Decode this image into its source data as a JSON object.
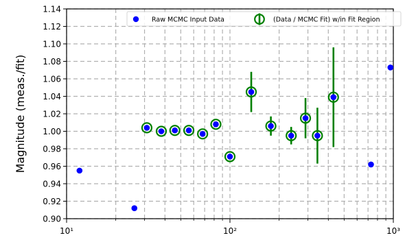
{
  "chart_data": {
    "type": "scatter",
    "title": "",
    "xlabel": "",
    "ylabel": "Magnitude (meas./fit)",
    "xscale": "log",
    "xlim": [
      10,
      1000
    ],
    "ylim": [
      0.9,
      1.14
    ],
    "grid": true,
    "legend_position": "top-right",
    "x_tick_labels": [
      "10¹",
      "10²",
      "10³"
    ],
    "x_major_ticks": [
      10,
      100,
      1000
    ],
    "y_ticks": [
      0.9,
      0.92,
      0.94,
      0.96,
      0.98,
      1.0,
      1.02,
      1.04,
      1.06,
      1.08,
      1.1,
      1.12,
      1.14
    ],
    "y_tick_labels": [
      "0.90",
      "0.92",
      "0.94",
      "0.96",
      "0.98",
      "1.00",
      "1.02",
      "1.04",
      "1.06",
      "1.08",
      "1.10",
      "1.12",
      "1.14"
    ],
    "series": [
      {
        "name": "Raw MCMC Input Data",
        "color": "#0000ff",
        "marker": "filled-circle",
        "x": [
          12,
          26,
          31,
          38,
          46,
          56,
          68,
          82,
          100,
          135,
          178,
          237,
          290,
          343,
          430,
          730,
          960
        ],
        "y": [
          0.955,
          0.912,
          1.004,
          1.0,
          1.001,
          1.001,
          0.997,
          1.008,
          0.971,
          1.045,
          1.006,
          0.995,
          1.015,
          0.995,
          1.039,
          0.962,
          1.073
        ]
      },
      {
        "name": "(Data / MCMC Fit) w/in Fit Region",
        "color": "#008000",
        "marker": "open-circle-errorbar",
        "x": [
          31,
          38,
          46,
          56,
          68,
          82,
          100,
          135,
          178,
          237,
          290,
          343,
          430
        ],
        "y": [
          1.004,
          1.0,
          1.001,
          1.001,
          0.997,
          1.008,
          0.971,
          1.045,
          1.006,
          0.995,
          1.015,
          0.995,
          1.039
        ],
        "yerr": [
          0.003,
          0.003,
          0.003,
          0.003,
          0.003,
          0.003,
          0.003,
          0.023,
          0.011,
          0.01,
          0.023,
          0.032,
          0.057
        ]
      }
    ]
  }
}
